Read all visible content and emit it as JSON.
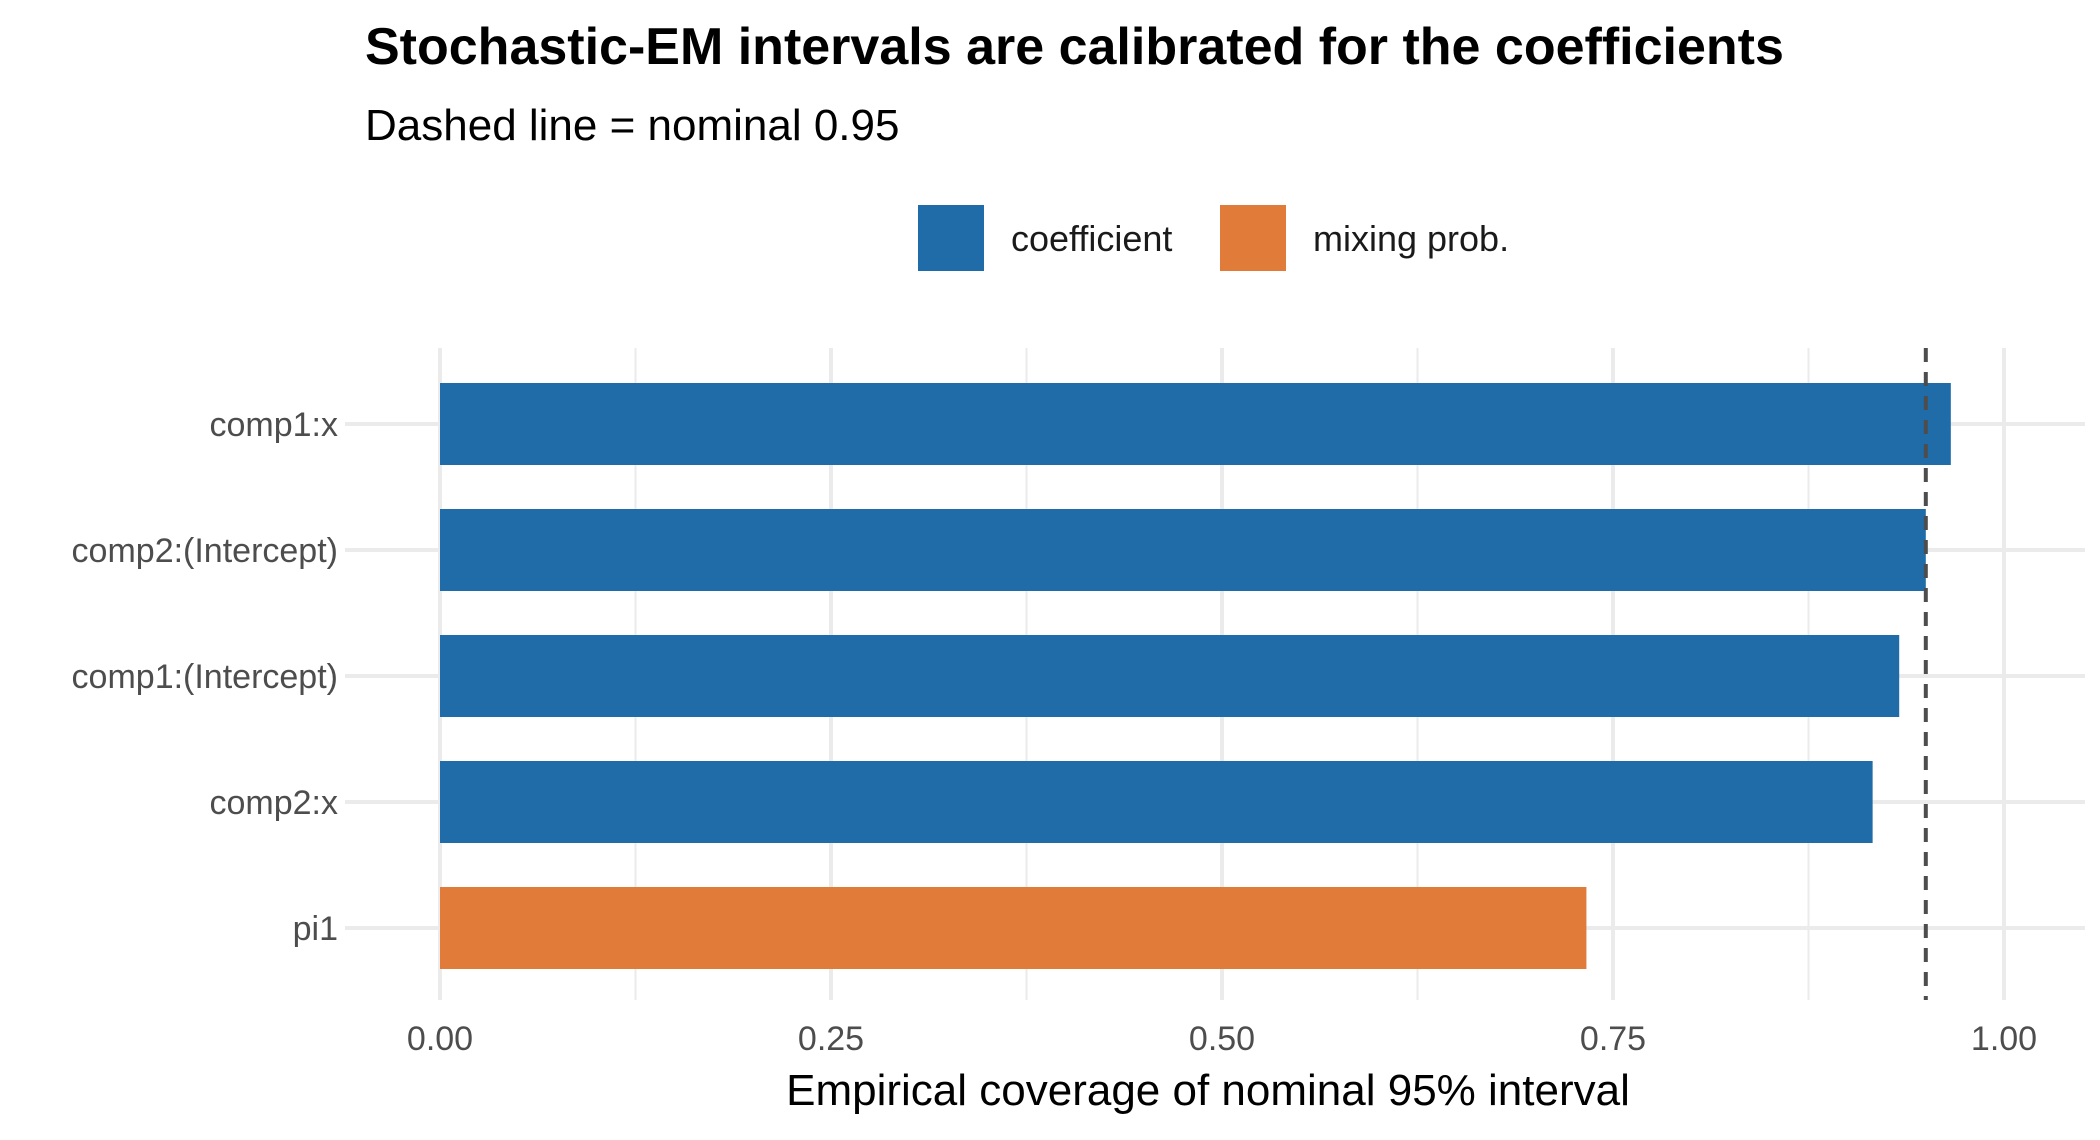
{
  "chart_data": {
    "type": "bar",
    "orientation": "horizontal",
    "title": "Stochastic-EM intervals are calibrated for the coefficients",
    "subtitle": "Dashed line = nominal 0.95",
    "xlabel": "Empirical coverage of nominal 95% interval",
    "ylabel": "",
    "xlim": [
      0,
      1.0
    ],
    "x_ticks": [
      0.0,
      0.25,
      0.5,
      0.75,
      1.0
    ],
    "x_tick_labels": [
      "0.00",
      "0.25",
      "0.50",
      "0.75",
      "1.00"
    ],
    "reference_line": {
      "value": 0.95,
      "style": "dashed",
      "color": "#4d4d4d"
    },
    "grid": true,
    "legend_position": "top",
    "legend": [
      {
        "label": "coefficient",
        "color": "#1f6ca8"
      },
      {
        "label": "mixing prob.",
        "color": "#e07b39"
      }
    ],
    "bars": [
      {
        "category": "comp1:x",
        "value": 0.966,
        "group": "coefficient"
      },
      {
        "category": "comp2:(Intercept)",
        "value": 0.95,
        "group": "coefficient"
      },
      {
        "category": "comp1:(Intercept)",
        "value": 0.933,
        "group": "coefficient"
      },
      {
        "category": "comp2:x",
        "value": 0.916,
        "group": "coefficient"
      },
      {
        "category": "pi1",
        "value": 0.733,
        "group": "mixing prob."
      }
    ]
  }
}
